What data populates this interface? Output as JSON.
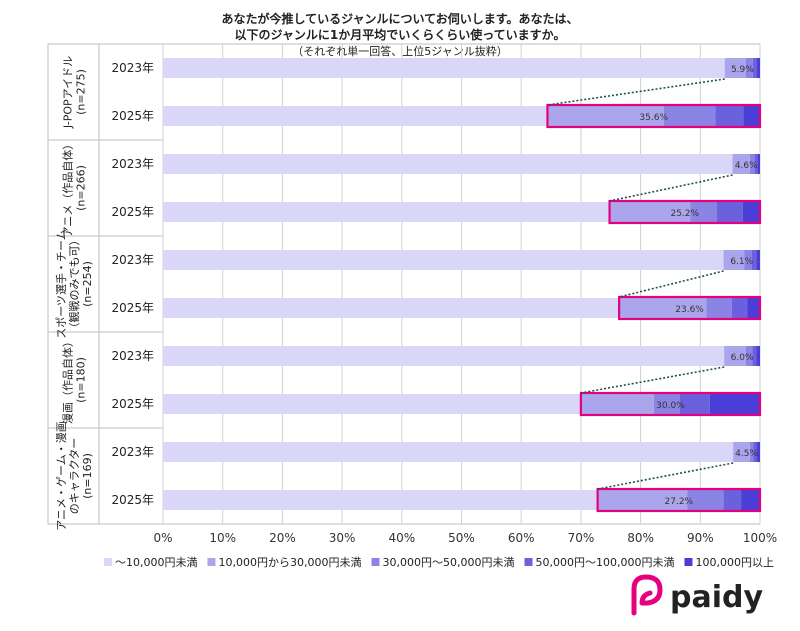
{
  "chart_data": {
    "type": "bar",
    "orientation": "horizontal",
    "stacked": "percent",
    "title_lines": [
      "あなたが今推しているジャンルについてお伺いします。あなたは、",
      "以下のジャンルに1か月平均でいくらくらい使っていますか。",
      "（それぞれ単一回答、上位5ジャンル抜粋）"
    ],
    "groups": [
      {
        "label": "J-POPアイドル",
        "n": "(n=275)"
      },
      {
        "label": "アニメ（作品自体）",
        "n": "(n=266)"
      },
      {
        "label": "スポーツ選手・チーム（観戦のみでも可）",
        "label_lines": [
          "スポーツ選手・チーム",
          "（観戦のみでも可）"
        ],
        "n": "(n=254)"
      },
      {
        "label": "漫画（作品自体）",
        "n": "(n=180)"
      },
      {
        "label": "アニメ・ゲーム・漫画のキャラクター",
        "label_lines": [
          "アニメ・ゲーム・漫画",
          "のキャラクター"
        ],
        "n": "(n=169)"
      }
    ],
    "categories": [
      "J-POPアイドル 2023年",
      "J-POPアイドル 2025年",
      "アニメ（作品自体） 2023年",
      "アニメ（作品自体） 2025年",
      "スポーツ選手・チーム 2023年",
      "スポーツ選手・チーム 2025年",
      "漫画（作品自体） 2023年",
      "漫画（作品自体） 2025年",
      "アニメ・ゲーム・漫画のキャラクター 2023年",
      "アニメ・ゲーム・漫画のキャラクター 2025年"
    ],
    "year_labels": [
      "2023年",
      "2025年"
    ],
    "series": [
      {
        "name": "～10,000円未満",
        "color": "#d9d6f7",
        "values": [
          94.1,
          64.4,
          95.4,
          74.8,
          93.9,
          76.4,
          94.0,
          70.0,
          95.5,
          72.8
        ]
      },
      {
        "name": "10,000円から30,000円未満",
        "color": "#aba6ec",
        "values": [
          3.5,
          19.5,
          2.9,
          13.5,
          3.5,
          14.6,
          3.6,
          12.2,
          2.8,
          15.0
        ]
      },
      {
        "name": "30,000円～50,000円未満",
        "color": "#8c84e4",
        "values": [
          1.2,
          8.6,
          0.8,
          4.5,
          1.2,
          4.3,
          1.1,
          4.4,
          0.6,
          6.1
        ]
      },
      {
        "name": "50,000円～100,000円未満",
        "color": "#6c60dc",
        "values": [
          0.7,
          4.7,
          0.5,
          4.3,
          0.8,
          2.6,
          0.7,
          5.0,
          0.6,
          3.0
        ]
      },
      {
        "name": "100,000円以上",
        "color": "#4a3ed6",
        "values": [
          0.5,
          2.8,
          0.4,
          2.9,
          0.6,
          2.1,
          0.6,
          8.4,
          0.5,
          3.1
        ]
      }
    ],
    "data_labels": [
      "5.9%",
      "35.6%",
      "4.6%",
      "25.2%",
      "6.1%",
      "23.6%",
      "6.0%",
      "30.0%",
      "4.5%",
      "27.2%"
    ],
    "xlim": [
      0,
      100
    ],
    "xticks": [
      "0%",
      "10%",
      "20%",
      "30%",
      "40%",
      "50%",
      "60%",
      "70%",
      "80%",
      "90%",
      "100%"
    ],
    "grid": true,
    "legend_position": "bottom",
    "highlight_color": "#e6007e"
  },
  "brand": {
    "logo_text": "paidy",
    "logo_color": "#e6007e"
  }
}
